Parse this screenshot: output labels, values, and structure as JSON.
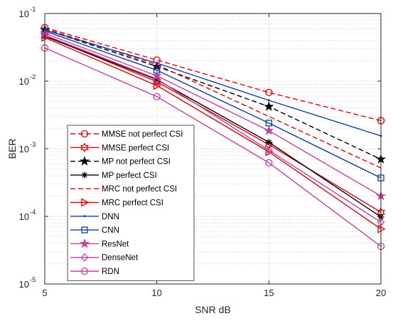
{
  "chart_data": {
    "type": "line",
    "xlabel": "SNR dB",
    "ylabel": "BER",
    "x": [
      5,
      10,
      15,
      20
    ],
    "xlim": [
      5,
      20
    ],
    "ylim": [
      1e-05,
      0.1
    ],
    "yscale": "log",
    "grid": "on (major and minor)",
    "legend_position": "left",
    "x_ticks": [
      "5",
      "10",
      "15",
      "20"
    ],
    "y_ticks": [
      {
        "base": "10",
        "exp": "-5"
      },
      {
        "base": "10",
        "exp": "-4"
      },
      {
        "base": "10",
        "exp": "-3"
      },
      {
        "base": "10",
        "exp": "-2"
      },
      {
        "base": "10",
        "exp": "-1"
      }
    ],
    "series": [
      {
        "name": "MMSE not perfect CSI",
        "values": [
          0.062,
          0.0205,
          0.0068,
          0.0026
        ],
        "color": "#e8000b",
        "dash": "dashed",
        "marker": "circle"
      },
      {
        "name": "MMSE perfect CSI",
        "values": [
          0.047,
          0.0098,
          0.00115,
          0.000115
        ],
        "color": "#e8000b",
        "dash": "solid",
        "marker": "hexagram"
      },
      {
        "name": "MP not perfect CSI",
        "values": [
          0.058,
          0.0165,
          0.0042,
          0.0007
        ],
        "color": "#000000",
        "dash": "dashed",
        "marker": "pentagram"
      },
      {
        "name": "MP perfect CSI",
        "values": [
          0.046,
          0.0105,
          0.00125,
          9.8e-05
        ],
        "color": "#000000",
        "dash": "solid",
        "marker": "asterisk"
      },
      {
        "name": "MRC not perfect CSI",
        "values": [
          0.06,
          0.0175,
          0.003,
          0.00052
        ],
        "color": "#e8000b",
        "dash": "dashed",
        "marker": "none"
      },
      {
        "name": "MRC perfect CSI",
        "values": [
          0.044,
          0.0086,
          0.0009,
          6.5e-05
        ],
        "color": "#e8000b",
        "dash": "solid",
        "marker": "triangle-right"
      },
      {
        "name": "DNN",
        "values": [
          0.057,
          0.0185,
          0.0052,
          0.00155
        ],
        "color": "#0f3fa6",
        "dash": "solid",
        "marker": "dot"
      },
      {
        "name": "CNN",
        "values": [
          0.055,
          0.0145,
          0.0024,
          0.00037
        ],
        "color": "#0f3fa6",
        "dash": "solid",
        "marker": "square"
      },
      {
        "name": "ResNet",
        "values": [
          0.051,
          0.012,
          0.00185,
          0.0002
        ],
        "color": "#c4449d",
        "dash": "solid",
        "marker": "pentagram"
      },
      {
        "name": "DenseNet",
        "values": [
          0.048,
          0.0108,
          0.00095,
          8.2e-05
        ],
        "color": "#c4449d",
        "dash": "solid",
        "marker": "diamond"
      },
      {
        "name": "RDN",
        "values": [
          0.031,
          0.0059,
          0.00062,
          3.6e-05
        ],
        "color": "#c4449d",
        "dash": "solid",
        "marker": "circle"
      }
    ]
  }
}
